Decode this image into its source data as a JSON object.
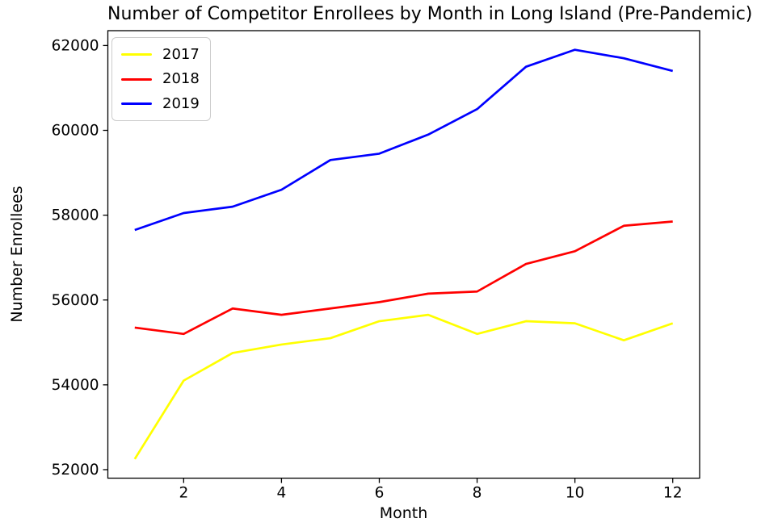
{
  "chart_data": {
    "type": "line",
    "title": "Number of Competitor Enrollees by Month in Long Island (Pre-Pandemic)",
    "xlabel": "Month",
    "ylabel": "Number Enrollees",
    "x": [
      1,
      2,
      3,
      4,
      5,
      6,
      7,
      8,
      9,
      10,
      11,
      12
    ],
    "series": [
      {
        "name": "2017",
        "color": "#ffff00",
        "values": [
          52250,
          54100,
          54750,
          54950,
          55100,
          55500,
          55650,
          55200,
          55500,
          55450,
          55050,
          55450
        ]
      },
      {
        "name": "2018",
        "color": "#ff0000",
        "values": [
          55350,
          55200,
          55800,
          55650,
          55800,
          55950,
          56150,
          56200,
          56850,
          57150,
          57750,
          57850
        ]
      },
      {
        "name": "2019",
        "color": "#0000ff",
        "values": [
          57650,
          58050,
          58200,
          58600,
          59300,
          59450,
          59900,
          60500,
          61500,
          61900,
          61700,
          61400
        ]
      }
    ],
    "xticks": [
      2,
      4,
      6,
      8,
      10,
      12
    ],
    "yticks": [
      52000,
      54000,
      56000,
      58000,
      60000,
      62000
    ],
    "xlim": [
      0.45,
      12.55
    ],
    "ylim": [
      51800,
      62350
    ],
    "grid": false,
    "legend_position": "upper left",
    "axis_color": "#000000",
    "background_color": "#ffffff"
  }
}
